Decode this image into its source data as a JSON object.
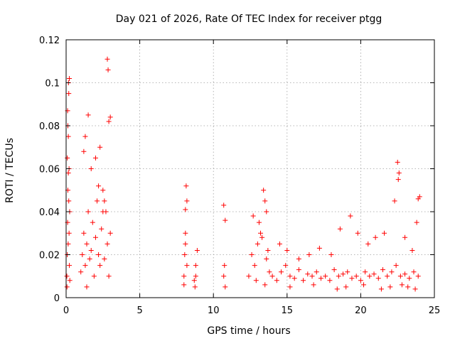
{
  "chart_data": {
    "type": "scatter",
    "title": "Day 021 of 2026, Rate Of TEC Index for receiver ptgg",
    "xlabel": "GPS time / hours",
    "ylabel": "ROTI / TECUs",
    "xlim": [
      0,
      25
    ],
    "ylim": [
      0,
      0.12
    ],
    "xticks": [
      0,
      5,
      10,
      15,
      20,
      25
    ],
    "yticks": [
      0,
      0.02,
      0.04,
      0.06,
      0.08,
      0.1,
      0.12
    ],
    "xtick_labels": [
      "0",
      "5",
      "10",
      "15",
      "20",
      "25"
    ],
    "ytick_labels": [
      "0",
      "0.02",
      "0.04",
      "0.06",
      "0.08",
      "0.1",
      "0.12"
    ],
    "grid": true,
    "marker": "plus",
    "color": "#ff0000",
    "series": [
      {
        "x": [
          0.05,
          0.08,
          0.1,
          0.12,
          0.15,
          0.18,
          0.2,
          0.22,
          0.25,
          0.08,
          0.12,
          0.18,
          0.22,
          0.1,
          0.15,
          0.2,
          0.06,
          0.14,
          0.24,
          0.16,
          1.0,
          1.1,
          1.2,
          1.3,
          1.4,
          1.5,
          1.6,
          1.7,
          1.8,
          1.9,
          2.0,
          2.1,
          2.2,
          2.3,
          2.4,
          2.5,
          2.6,
          2.7,
          2.8,
          2.9,
          3.0,
          1.3,
          1.5,
          1.7,
          2.0,
          2.3,
          2.6,
          2.9,
          1.2,
          2.5,
          2.8,
          2.85,
          3.0,
          1.4,
          2.2,
          8.0,
          8.05,
          8.1,
          8.15,
          8.2,
          8.0,
          8.1,
          8.2,
          8.1,
          8.7,
          8.8,
          8.9,
          8.8,
          8.75,
          10.7,
          10.8,
          10.75,
          10.8,
          10.7,
          12.4,
          12.6,
          12.8,
          13.0,
          13.2,
          13.4,
          13.6,
          13.8,
          12.7,
          13.1,
          13.5,
          12.9,
          13.3,
          13.6,
          13.5,
          13.7,
          14.0,
          14.3,
          14.6,
          14.9,
          15.2,
          15.5,
          15.8,
          16.1,
          16.4,
          16.7,
          17.0,
          17.3,
          17.6,
          17.9,
          18.2,
          18.5,
          18.8,
          19.1,
          19.4,
          19.7,
          20.0,
          20.3,
          20.6,
          20.9,
          21.2,
          21.5,
          21.8,
          22.1,
          22.4,
          22.7,
          23.0,
          23.3,
          23.6,
          23.9,
          14.5,
          15.0,
          15.8,
          16.5,
          17.2,
          18.0,
          18.6,
          19.3,
          19.8,
          20.5,
          21.0,
          21.6,
          22.3,
          22.6,
          22.5,
          22.55,
          23.0,
          23.5,
          23.8,
          23.9,
          24.0,
          15.2,
          16.8,
          18.4,
          19.0,
          20.2,
          21.4,
          22.0,
          22.8,
          23.2,
          23.7
        ],
        "y": [
          0.01,
          0.02,
          0.035,
          0.05,
          0.058,
          0.045,
          0.03,
          0.015,
          0.008,
          0.065,
          0.08,
          0.095,
          0.102,
          0.087,
          0.075,
          0.06,
          0.005,
          0.025,
          0.04,
          0.1,
          0.012,
          0.02,
          0.03,
          0.015,
          0.025,
          0.04,
          0.018,
          0.022,
          0.035,
          0.01,
          0.028,
          0.045,
          0.02,
          0.015,
          0.032,
          0.05,
          0.018,
          0.04,
          0.025,
          0.01,
          0.03,
          0.075,
          0.085,
          0.06,
          0.065,
          0.07,
          0.045,
          0.082,
          0.068,
          0.04,
          0.111,
          0.106,
          0.084,
          0.005,
          0.052,
          0.01,
          0.02,
          0.03,
          0.052,
          0.045,
          0.006,
          0.041,
          0.015,
          0.025,
          0.008,
          0.015,
          0.022,
          0.01,
          0.005,
          0.043,
          0.036,
          0.015,
          0.005,
          0.01,
          0.01,
          0.02,
          0.015,
          0.025,
          0.03,
          0.05,
          0.04,
          0.012,
          0.038,
          0.035,
          0.045,
          0.008,
          0.028,
          0.018,
          0.006,
          0.022,
          0.01,
          0.008,
          0.012,
          0.015,
          0.01,
          0.009,
          0.013,
          0.008,
          0.011,
          0.01,
          0.012,
          0.009,
          0.01,
          0.008,
          0.013,
          0.01,
          0.011,
          0.012,
          0.009,
          0.01,
          0.008,
          0.012,
          0.01,
          0.011,
          0.009,
          0.013,
          0.01,
          0.012,
          0.015,
          0.01,
          0.011,
          0.009,
          0.012,
          0.01,
          0.025,
          0.022,
          0.018,
          0.02,
          0.023,
          0.02,
          0.032,
          0.038,
          0.03,
          0.025,
          0.028,
          0.03,
          0.045,
          0.058,
          0.063,
          0.055,
          0.028,
          0.022,
          0.035,
          0.046,
          0.047,
          0.005,
          0.006,
          0.004,
          0.005,
          0.006,
          0.004,
          0.005,
          0.006,
          0.005,
          0.004
        ]
      }
    ]
  }
}
